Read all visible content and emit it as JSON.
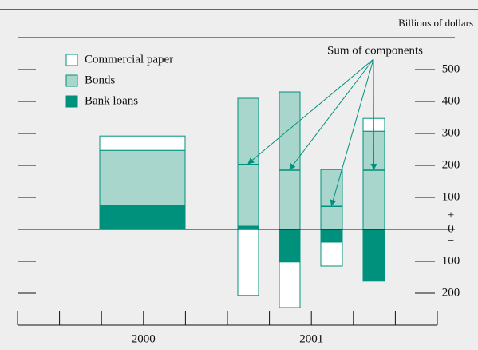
{
  "chart_data": {
    "type": "bar",
    "stacked": true,
    "axis_label": "Billions of dollars",
    "annotation": "Sum of components",
    "zero_signs": {
      "plus": "+",
      "minus": "−"
    },
    "x_labels": [
      "2000",
      "2001"
    ],
    "categories": [
      null,
      null,
      null,
      null,
      null
    ],
    "series": [
      {
        "name": "Bank loans",
        "color": "#00917d",
        "values": [
          75,
          10,
          -102,
          -40,
          -162
        ]
      },
      {
        "name": "Bonds",
        "color": "#a9d6cc",
        "values": [
          172,
          400,
          430,
          187,
          307
        ]
      },
      {
        "name": "Commercial paper",
        "color": "#ffffff",
        "values": [
          45,
          -207,
          -143,
          -75,
          40
        ]
      }
    ],
    "legend_order": [
      2,
      1,
      0
    ],
    "ylim": [
      -300,
      600
    ],
    "yticks": [
      {
        "value": -200,
        "label": "200"
      },
      {
        "value": -100,
        "label": "100"
      },
      0,
      100,
      200,
      300,
      400,
      500
    ]
  }
}
